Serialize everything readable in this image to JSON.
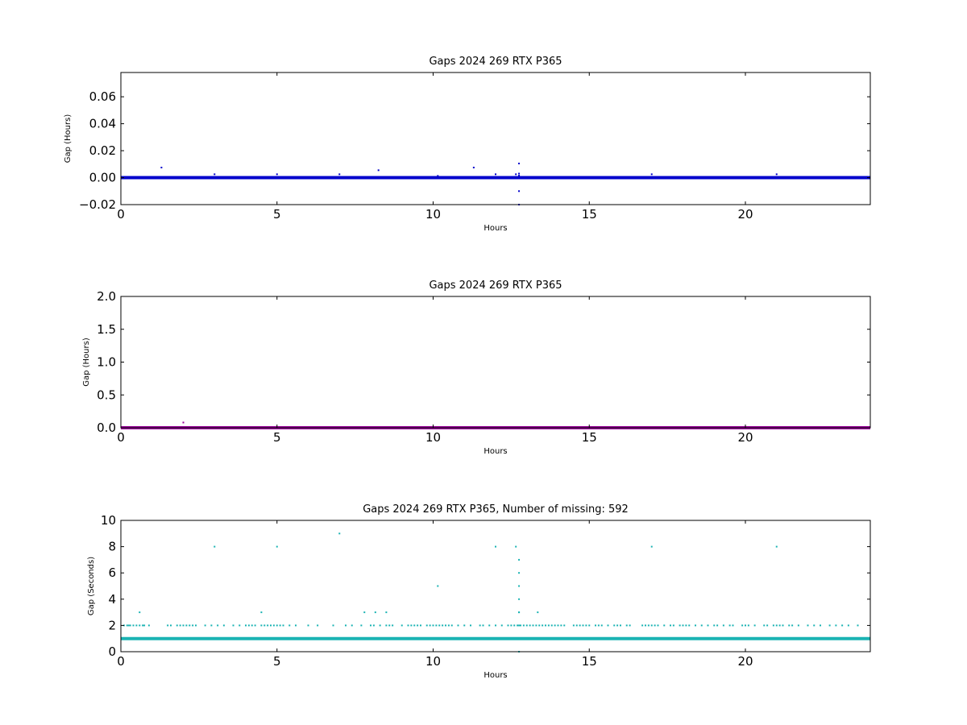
{
  "chart_data": [
    {
      "type": "scatter",
      "title": "Gaps 2024 269 RTX  P365",
      "xlabel": "Hours",
      "ylabel": "Gap (Hours)",
      "xlim": [
        0,
        24
      ],
      "ylim": [
        -0.02,
        0.078
      ],
      "xticks": [
        "0",
        "5",
        "10",
        "15",
        "20"
      ],
      "xtick_values": [
        0,
        5,
        10,
        15,
        20
      ],
      "yticks": [
        "−0.02",
        "0.00",
        "0.02",
        "0.04",
        "0.06"
      ],
      "ytick_values": [
        -0.02,
        0.0,
        0.02,
        0.04,
        0.06
      ],
      "color": "#0000cc",
      "baseline": {
        "y": 0.0,
        "x_start": 0,
        "x_end": 24
      },
      "series": [
        {
          "x": [
            1.3,
            3.0,
            5.0,
            7.0,
            8.25,
            10.15,
            11.3,
            12.0,
            12.65,
            12.75,
            12.75,
            12.75,
            12.75,
            12.75,
            17.0,
            21.0
          ],
          "y": [
            0.0075,
            0.0025,
            0.0025,
            0.0025,
            0.0055,
            0.0013,
            0.0075,
            0.0025,
            0.0025,
            0.0105,
            0.003,
            0.0015,
            -0.01,
            -0.02,
            0.0025,
            0.0025
          ]
        }
      ]
    },
    {
      "type": "scatter",
      "title": "Gaps 2024 269 RTX  P365",
      "xlabel": "Hours",
      "ylabel": "Gap (Hours)",
      "xlim": [
        0,
        24
      ],
      "ylim": [
        0,
        2.0
      ],
      "xticks": [
        "0",
        "5",
        "10",
        "15",
        "20"
      ],
      "xtick_values": [
        0,
        5,
        10,
        15,
        20
      ],
      "yticks": [
        "0.0",
        "0.5",
        "1.0",
        "1.5",
        "2.0"
      ],
      "ytick_values": [
        0.0,
        0.5,
        1.0,
        1.5,
        2.0
      ],
      "color": "#990099",
      "baseline": {
        "y": 0.0,
        "x_start": 0,
        "x_end": 24
      },
      "series": [
        {
          "x": [
            2.0
          ],
          "y": [
            0.08
          ]
        }
      ]
    },
    {
      "type": "scatter",
      "title": "Gaps 2024 269 RTX  P365, Number of missing: 592",
      "xlabel": "Hours",
      "ylabel": "Gap (Seconds)",
      "xlim": [
        0,
        24
      ],
      "ylim": [
        0,
        10
      ],
      "xticks": [
        "0",
        "5",
        "10",
        "15",
        "20"
      ],
      "xtick_values": [
        0,
        5,
        10,
        15,
        20
      ],
      "yticks": [
        "0",
        "2",
        "4",
        "6",
        "8",
        "10"
      ],
      "ytick_values": [
        0,
        2,
        4,
        6,
        8,
        10
      ],
      "color": "#1ab3b3",
      "baseline": {
        "y": 1,
        "x_start": 0,
        "x_end": 24
      },
      "series": [
        {
          "x": [
            3.0,
            5.0,
            7.0,
            12.0,
            12.65,
            17.0,
            21.0,
            10.15,
            12.75,
            12.75,
            12.75,
            12.75,
            12.75,
            12.75,
            12.75,
            0.6,
            4.5,
            7.8,
            8.15,
            8.5,
            13.35,
            12.75,
            2.0
          ],
          "y": [
            8,
            8,
            9,
            8,
            8,
            8,
            8,
            5,
            7,
            6,
            5,
            4,
            3,
            3,
            0,
            3,
            3,
            3,
            3,
            3,
            3,
            2,
            1
          ]
        }
      ],
      "two_second_gaps_x": [
        0.1,
        0.2,
        0.25,
        0.3,
        0.4,
        0.5,
        0.6,
        0.7,
        0.75,
        0.9,
        1.5,
        1.6,
        1.8,
        1.9,
        2.0,
        2.1,
        2.2,
        2.3,
        2.4,
        2.7,
        2.9,
        3.1,
        3.3,
        3.6,
        3.8,
        4.0,
        4.1,
        4.2,
        4.3,
        4.5,
        4.6,
        4.7,
        4.8,
        4.9,
        5.0,
        5.1,
        5.2,
        5.4,
        5.6,
        6.0,
        6.3,
        6.8,
        7.2,
        7.4,
        7.7,
        8.0,
        8.1,
        8.3,
        8.5,
        8.6,
        8.7,
        9.0,
        9.2,
        9.3,
        9.4,
        9.5,
        9.6,
        9.8,
        9.9,
        10.0,
        10.1,
        10.2,
        10.3,
        10.4,
        10.5,
        10.6,
        10.8,
        11.0,
        11.2,
        11.5,
        11.6,
        11.8,
        12.0,
        12.2,
        12.4,
        12.5,
        12.6,
        12.7,
        12.8,
        12.9,
        13.0,
        13.1,
        13.2,
        13.3,
        13.4,
        13.5,
        13.6,
        13.7,
        13.8,
        13.9,
        14.0,
        14.1,
        14.2,
        14.5,
        14.6,
        14.7,
        14.8,
        14.9,
        15.0,
        15.2,
        15.3,
        15.4,
        15.6,
        15.8,
        15.9,
        16.0,
        16.2,
        16.3,
        16.7,
        16.8,
        16.9,
        17.0,
        17.1,
        17.2,
        17.4,
        17.6,
        17.7,
        17.9,
        18.0,
        18.1,
        18.2,
        18.4,
        18.6,
        18.8,
        19.0,
        19.1,
        19.3,
        19.5,
        19.6,
        19.9,
        20.0,
        20.1,
        20.3,
        20.6,
        20.7,
        20.9,
        21.0,
        21.1,
        21.2,
        21.4,
        21.5,
        21.7,
        22.0,
        22.2,
        22.4,
        22.7,
        22.9,
        23.1,
        23.3,
        23.6
      ]
    }
  ]
}
